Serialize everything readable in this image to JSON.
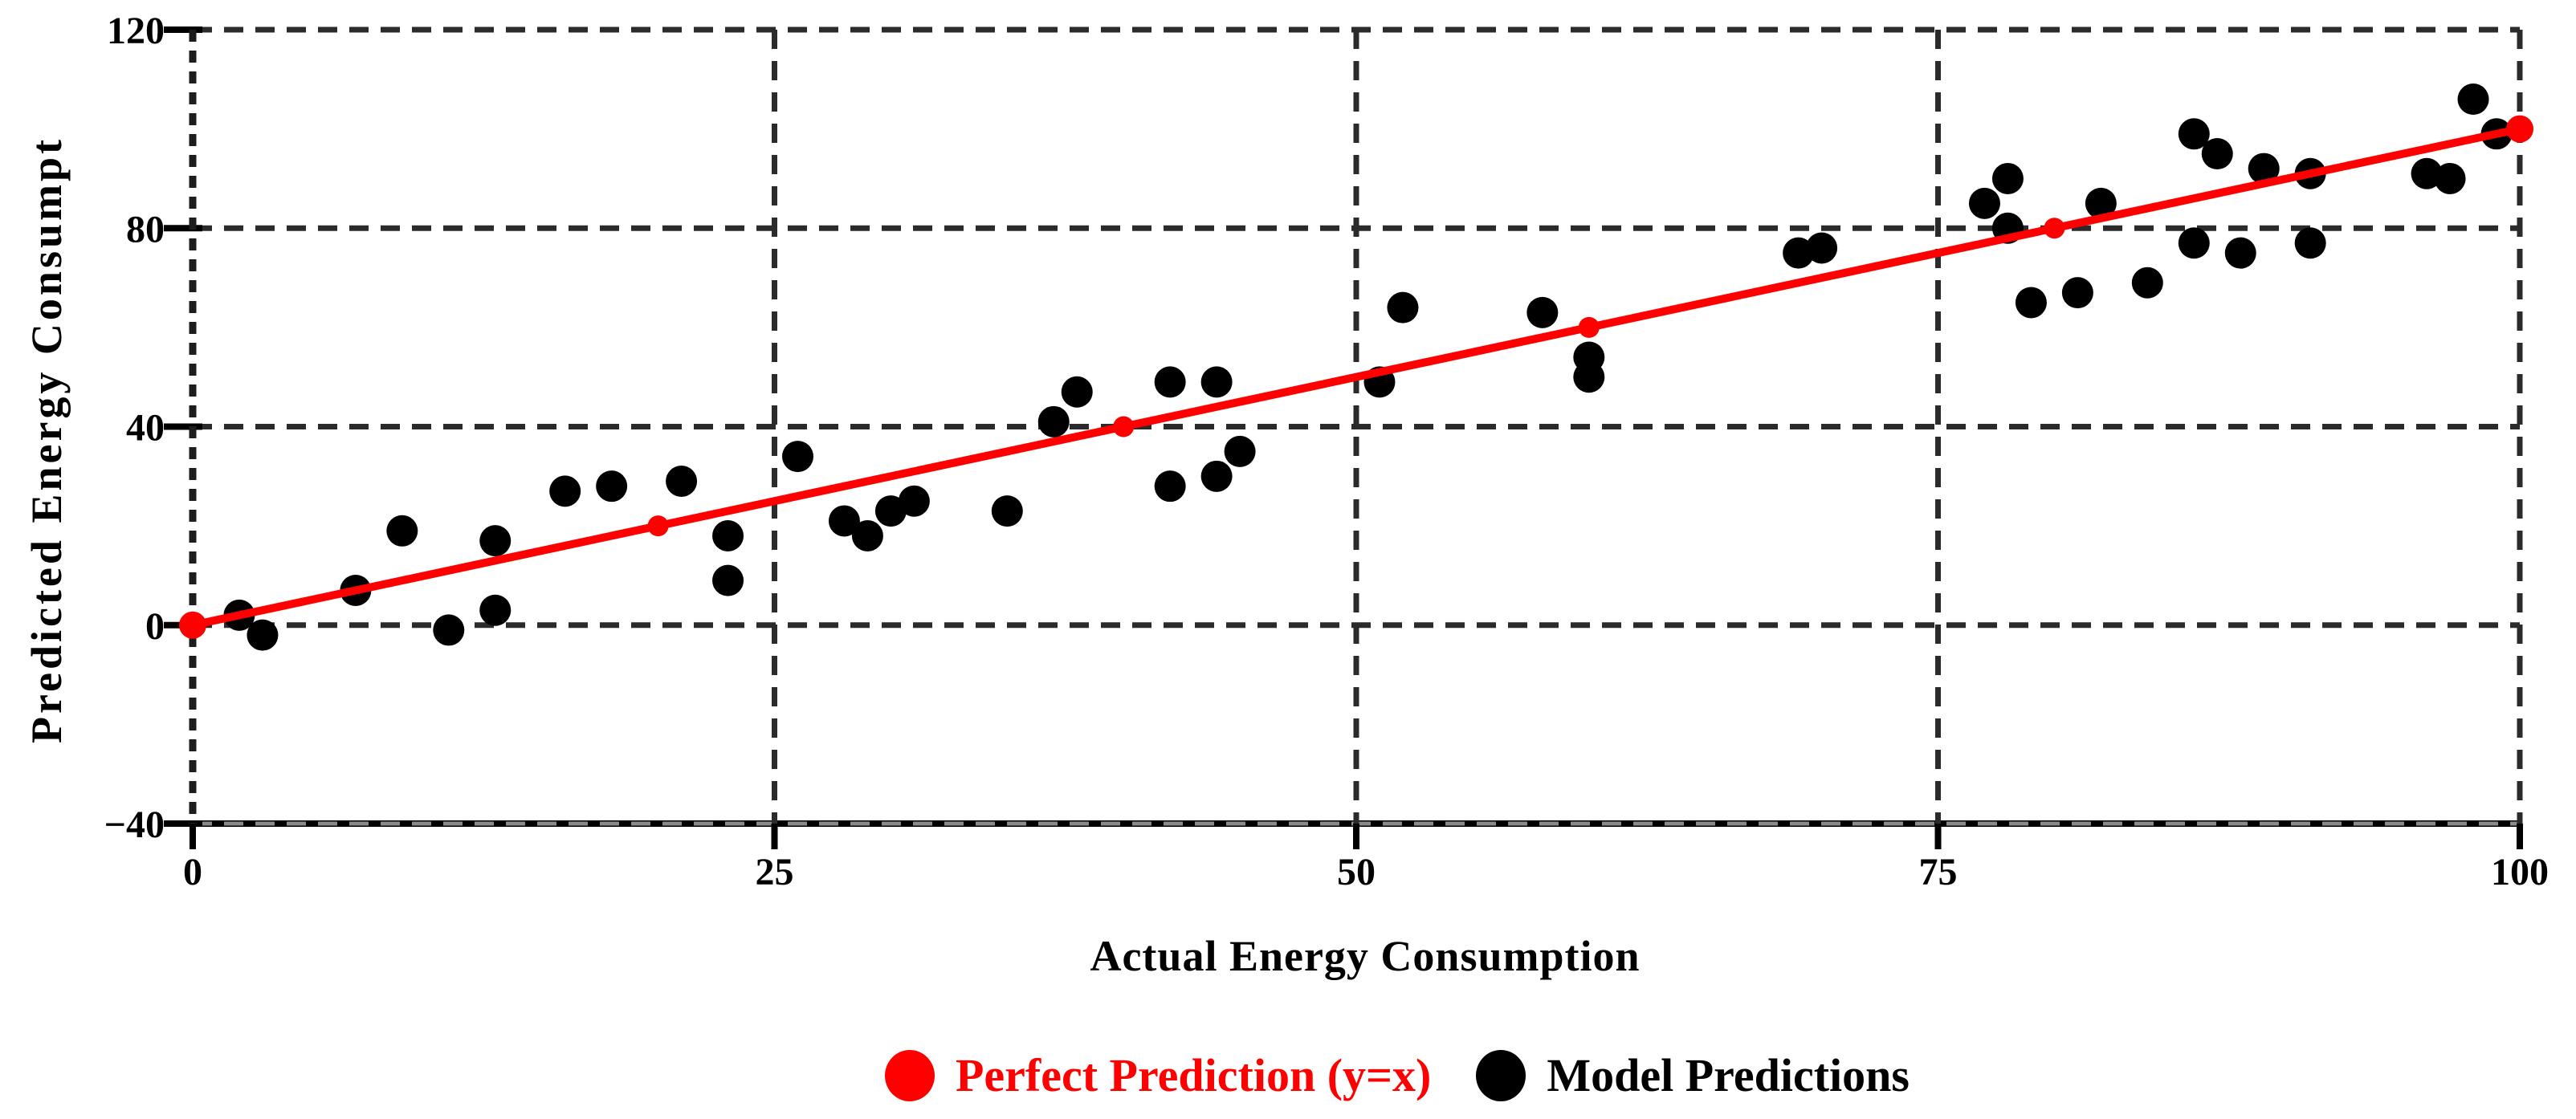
{
  "chart_data": {
    "type": "scatter",
    "title": "",
    "xlabel": "Actual Energy Consumption",
    "ylabel": "Predicted Energy Consumpt",
    "xlim": [
      0,
      100
    ],
    "ylim": [
      -40,
      120
    ],
    "x_ticks": [
      0,
      25,
      50,
      75,
      100
    ],
    "x_tick_labels": [
      "0",
      "25",
      "50",
      "75",
      "100"
    ],
    "y_ticks": [
      -40,
      0,
      40,
      80,
      120
    ],
    "y_tick_labels": [
      "−40",
      "0",
      "40",
      "80",
      "120"
    ],
    "grid": "dashed",
    "legend_position": "bottom-center",
    "series": [
      {
        "name": "Perfect Prediction (y=x)",
        "type": "line",
        "color": "#FF0000",
        "marker": "circle",
        "x": [
          0,
          20,
          40,
          60,
          80,
          100
        ],
        "y": [
          0,
          20,
          40,
          60,
          80,
          100
        ]
      },
      {
        "name": "Model Predictions",
        "type": "scatter",
        "color": "#000000",
        "points": [
          [
            2,
            2
          ],
          [
            3,
            -2
          ],
          [
            7,
            7
          ],
          [
            9,
            19
          ],
          [
            11,
            -1
          ],
          [
            13,
            17
          ],
          [
            13,
            3
          ],
          [
            16,
            27
          ],
          [
            18,
            28
          ],
          [
            21,
            29
          ],
          [
            23,
            18
          ],
          [
            23,
            9
          ],
          [
            26,
            34
          ],
          [
            28,
            21
          ],
          [
            29,
            18
          ],
          [
            30,
            23
          ],
          [
            31,
            25
          ],
          [
            35,
            23
          ],
          [
            37,
            41
          ],
          [
            38,
            47
          ],
          [
            42,
            49
          ],
          [
            44,
            49
          ],
          [
            42,
            28
          ],
          [
            44,
            30
          ],
          [
            45,
            35
          ],
          [
            51,
            49
          ],
          [
            52,
            64
          ],
          [
            58,
            63
          ],
          [
            60,
            54
          ],
          [
            60,
            50
          ],
          [
            69,
            75
          ],
          [
            70,
            76
          ],
          [
            77,
            85
          ],
          [
            78,
            90
          ],
          [
            78,
            80
          ],
          [
            82,
            85
          ],
          [
            79,
            65
          ],
          [
            81,
            67
          ],
          [
            84,
            69
          ],
          [
            86,
            77
          ],
          [
            86,
            99
          ],
          [
            87,
            95
          ],
          [
            89,
            92
          ],
          [
            91,
            91
          ],
          [
            88,
            75
          ],
          [
            91,
            77
          ],
          [
            96,
            91
          ],
          [
            97,
            90
          ],
          [
            98,
            106
          ],
          [
            99,
            99
          ]
        ]
      }
    ],
    "legend": [
      {
        "label": "Perfect Prediction (y=x)",
        "color": "#FF0000"
      },
      {
        "label": "Model Predictions",
        "color": "#000000"
      }
    ]
  },
  "colors": {
    "background": "#FFFFFF",
    "axis": "#000000",
    "gridline": "#2B2B2B",
    "axis_gridline_overlay": "#8A8A8A",
    "perfect_prediction": "#FF0000",
    "model_predictions": "#000000"
  }
}
